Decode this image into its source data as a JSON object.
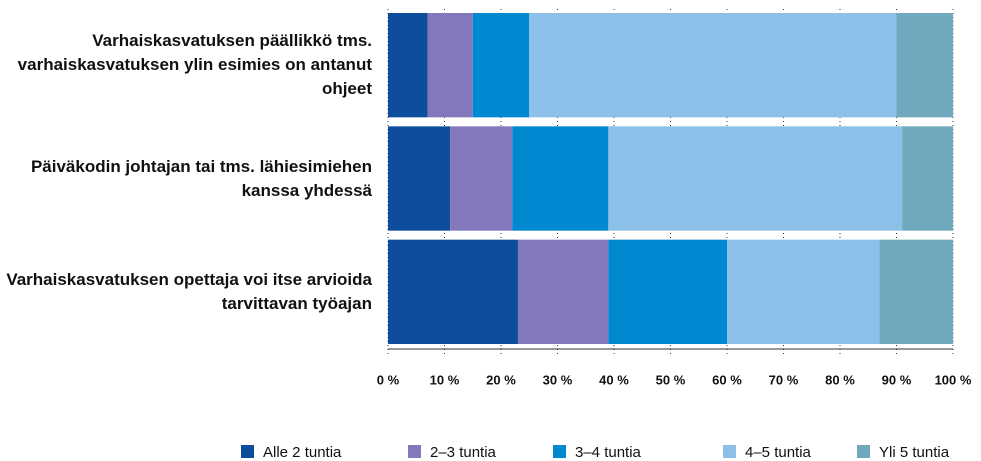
{
  "chart_data": {
    "type": "stacked-bar-horizontal",
    "categories": [
      "Varhaiskasvatuksen päällikkö tms. varhaiskasvatuksen ylin esimies on antanut ohjeet",
      "Päiväkodin johtajan tai tms. lähiesimiehen kanssa yhdessä",
      "Varhaiskasvatuksen opettaja voi itse arvioida tarvittavan työajan"
    ],
    "series": [
      {
        "name": "Alle 2 tuntia",
        "color": "#0e4c9c",
        "values": [
          7,
          11,
          23
        ]
      },
      {
        "name": "2–3 tuntia",
        "color": "#8478bc",
        "values": [
          8,
          11,
          16
        ]
      },
      {
        "name": "3–4 tuntia",
        "color": "#0088d1",
        "values": [
          10,
          17,
          21
        ]
      },
      {
        "name": "4–5 tuntia",
        "color": "#8cc0e8",
        "values": [
          65,
          52,
          27
        ]
      },
      {
        "name": "Yli 5 tuntia",
        "color": "#70a9bd",
        "values": [
          10,
          9,
          13
        ]
      }
    ],
    "xlim": [
      0,
      100
    ],
    "xticks": [
      {
        "value": 0,
        "label": "0 %"
      },
      {
        "value": 10,
        "label": "10 %"
      },
      {
        "value": 20,
        "label": "20 %"
      },
      {
        "value": 30,
        "label": "30 %"
      },
      {
        "value": 40,
        "label": "40 %"
      },
      {
        "value": 50,
        "label": "50 %"
      },
      {
        "value": 60,
        "label": "60 %"
      },
      {
        "value": 70,
        "label": "70 %"
      },
      {
        "value": 80,
        "label": "80 %"
      },
      {
        "value": 90,
        "label": "90 %"
      },
      {
        "value": 100,
        "label": "100 %"
      }
    ],
    "grid": true,
    "legend": "bottom"
  }
}
